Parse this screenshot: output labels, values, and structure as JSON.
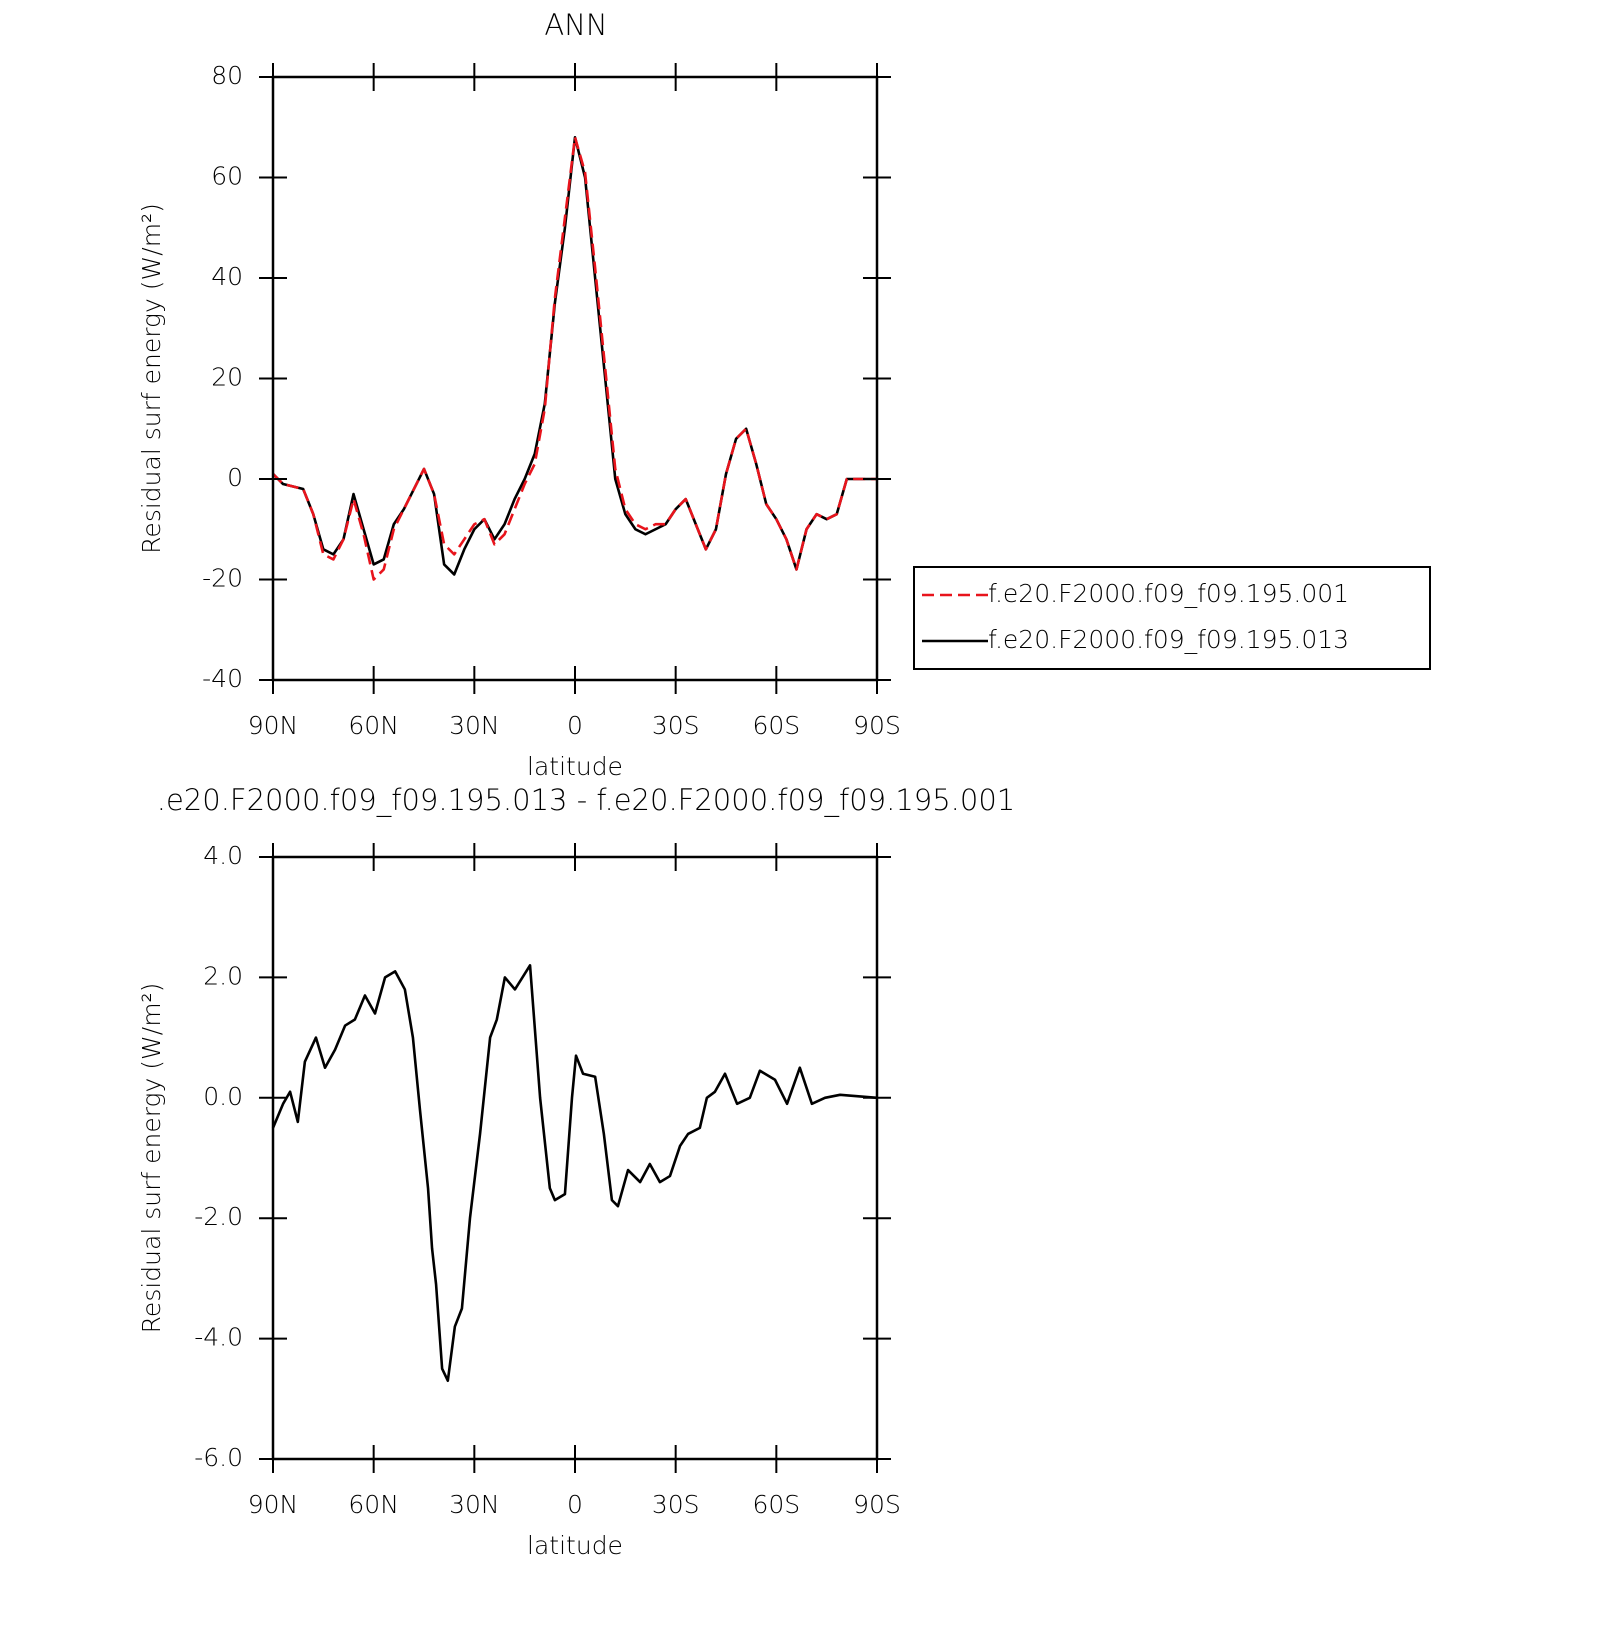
{
  "chart_data": [
    {
      "type": "line",
      "title": "ANN",
      "x_label": "latitude",
      "y_label": "Residual surf energy (W/m²)",
      "x": [
        90,
        87,
        84,
        81,
        78,
        75,
        72,
        69,
        66,
        63,
        60,
        57,
        54,
        51,
        48,
        45,
        42,
        39,
        36,
        33,
        30,
        27,
        24,
        21,
        18,
        15,
        12,
        9,
        6,
        3,
        0,
        -3,
        -6,
        -9,
        -12,
        -15,
        -18,
        -21,
        -24,
        -27,
        -30,
        -33,
        -36,
        -39,
        -42,
        -45,
        -48,
        -51,
        -54,
        -57,
        -60,
        -63,
        -66,
        -69,
        -72,
        -75,
        -78,
        -81,
        -84,
        -87,
        -90
      ],
      "series": [
        {
          "name": "f.e20.F2000.f09_f09.195.001",
          "color": "#e8141c",
          "linestyle": "dashed",
          "values": [
            1,
            -1,
            -1.5,
            -2,
            -7,
            -15,
            -16,
            -12,
            -4,
            -11,
            -20,
            -18,
            -10,
            -6,
            -2,
            2,
            -3,
            -13,
            -15,
            -12,
            -9,
            -8,
            -13,
            -11,
            -6,
            -1,
            3,
            14,
            36,
            52,
            68,
            61,
            42,
            22,
            2,
            -6,
            -9,
            -10,
            -9,
            -9,
            -6,
            -4,
            -9,
            -14,
            -10,
            1,
            8,
            10,
            3,
            -5,
            -8,
            -12,
            -18,
            -10,
            -7,
            -8,
            -7,
            0,
            0,
            0,
            0
          ]
        },
        {
          "name": "f.e20.F2000.f09_f09.195.013",
          "color": "#000000",
          "linestyle": "solid",
          "values": [
            1,
            -1,
            -1.5,
            -2,
            -7,
            -14,
            -15,
            -12,
            -3,
            -10,
            -17,
            -16,
            -9,
            -6,
            -2,
            2,
            -3,
            -17,
            -19,
            -14,
            -10,
            -8,
            -12,
            -9,
            -4,
            0,
            5,
            15,
            35,
            50,
            68,
            60,
            40,
            20,
            0,
            -7,
            -10,
            -11,
            -10,
            -9,
            -6,
            -4,
            -9,
            -14,
            -10,
            1,
            8,
            10,
            3,
            -5,
            -8,
            -12,
            -18,
            -10,
            -7,
            -8,
            -7,
            0,
            0,
            0,
            0
          ]
        }
      ],
      "xlim": [
        90,
        -90
      ],
      "xticks": [
        {
          "value": 90,
          "label": "90N"
        },
        {
          "value": 60,
          "label": "60N"
        },
        {
          "value": 30,
          "label": "30N"
        },
        0,
        {
          "value": -30,
          "label": "30S"
        },
        {
          "value": -60,
          "label": "60S"
        },
        {
          "value": -90,
          "label": "90S"
        }
      ],
      "ylim": [
        -40,
        80
      ],
      "yticks": [
        80,
        60,
        40,
        20,
        0,
        -20,
        -40
      ],
      "grid": false,
      "legend": "right"
    },
    {
      "type": "line",
      "title": ".e20.F2000.f09_f09.195.013 - f.e20.F2000.f09_f09.195.001",
      "x_label": "latitude",
      "y_label": "Residual surf energy (W/m²)",
      "x": [
        90,
        87,
        84.9,
        82.6,
        80.5,
        77.2,
        74.5,
        71.5,
        68.5,
        65.6,
        62.6,
        59.6,
        56.6,
        53.6,
        50.7,
        48.3,
        46.2,
        43.8,
        42.6,
        41.4,
        39.6,
        37.9,
        35.8,
        33.7,
        31.3,
        28.3,
        25.3,
        23.3,
        20.9,
        17.9,
        13.4,
        10.4,
        7.5,
        6,
        3,
        0.9,
        -0.3,
        -2.4,
        -6,
        -8.6,
        -11,
        -12.8,
        -15.8,
        -19.4,
        -22.3,
        -25.3,
        -28.3,
        -31.3,
        -33.7,
        -37.2,
        -39.3,
        -41.7,
        -44.7,
        -48.3,
        -52.1,
        -55.1,
        -59.6,
        -63.2,
        -67,
        -70.6,
        -74.5,
        -79,
        -90
      ],
      "series": [
        {
          "color": "#000000",
          "linestyle": "solid",
          "values": [
            -0.5,
            -0.1,
            0.1,
            -0.4,
            0.6,
            1.0,
            0.5,
            0.8,
            1.2,
            1.3,
            1.7,
            1.4,
            2.0,
            2.1,
            1.8,
            1.0,
            -0.2,
            -1.5,
            -2.5,
            -3.1,
            -4.5,
            -4.7,
            -3.8,
            -3.5,
            -2.0,
            -0.6,
            1.0,
            1.3,
            2.0,
            1.8,
            2.2,
            0.0,
            -1.5,
            -1.7,
            -1.6,
            0.0,
            0.7,
            0.4,
            0.35,
            -0.6,
            -1.7,
            -1.8,
            -1.2,
            -1.4,
            -1.1,
            -1.4,
            -1.3,
            -0.8,
            -0.6,
            -0.5,
            0.0,
            0.1,
            0.4,
            -0.1,
            0.0,
            0.45,
            0.3,
            -0.1,
            0.5,
            -0.1,
            0.0,
            0.05,
            0.0
          ]
        }
      ],
      "xlim": [
        90,
        -90
      ],
      "xticks": [
        {
          "value": 90,
          "label": "90N"
        },
        {
          "value": 60,
          "label": "60N"
        },
        {
          "value": 30,
          "label": "30N"
        },
        0,
        {
          "value": -30,
          "label": "30S"
        },
        {
          "value": -60,
          "label": "60S"
        },
        {
          "value": -90,
          "label": "90S"
        }
      ],
      "ylim": [
        -6,
        4
      ],
      "yticks": [
        {
          "value": 4,
          "label": "4.0"
        },
        {
          "value": 2,
          "label": "2.0"
        },
        {
          "value": 0,
          "label": "0.0"
        },
        {
          "value": -2,
          "label": "-2.0"
        },
        {
          "value": -4,
          "label": "-4.0"
        },
        {
          "value": -6,
          "label": "-6.0"
        }
      ],
      "grid": false
    }
  ]
}
